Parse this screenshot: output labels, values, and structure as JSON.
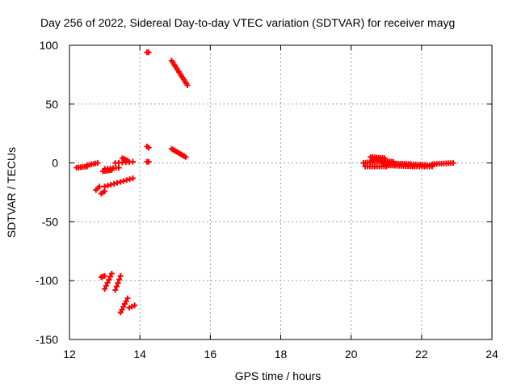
{
  "chart_data": {
    "type": "scatter",
    "title": "Day 256 of 2022, Sidereal Day-to-day VTEC variation (SDTVAR) for receiver mayg",
    "xlabel": "GPS time / hours",
    "ylabel": "SDTVAR / TECUs",
    "xlim": [
      12,
      24
    ],
    "ylim": [
      -150,
      100
    ],
    "xticks": [
      "12",
      "14",
      "16",
      "18",
      "20",
      "22",
      "24"
    ],
    "yticks": [
      "100",
      "50",
      "0",
      "-50",
      "-100",
      "-150"
    ],
    "grid": true,
    "marker": "+",
    "color": "#ff0000",
    "segments": [
      {
        "x0": 12.2,
        "y0": -4,
        "x1": 12.5,
        "y1": -3,
        "n": 6
      },
      {
        "x0": 12.5,
        "y0": -2,
        "x1": 12.8,
        "y1": 0,
        "n": 6
      },
      {
        "x0": 12.75,
        "y0": -23,
        "x1": 12.85,
        "y1": -20,
        "n": 3
      },
      {
        "x0": 12.9,
        "y0": -26,
        "x1": 13.0,
        "y1": -24,
        "n": 3
      },
      {
        "x0": 12.95,
        "y0": -7,
        "x1": 13.2,
        "y1": -6,
        "n": 6
      },
      {
        "x0": 13.0,
        "y0": -5,
        "x1": 13.4,
        "y1": -4,
        "n": 6
      },
      {
        "x0": 13.0,
        "y0": -20,
        "x1": 13.8,
        "y1": -13,
        "n": 10
      },
      {
        "x0": 13.5,
        "y0": 4,
        "x1": 13.65,
        "y1": 2,
        "n": 4
      },
      {
        "x0": 13.3,
        "y0": 0,
        "x1": 13.8,
        "y1": 1,
        "n": 6
      },
      {
        "x0": 12.9,
        "y0": -97,
        "x1": 13.0,
        "y1": -96,
        "n": 3
      },
      {
        "x0": 13.0,
        "y0": -107,
        "x1": 13.2,
        "y1": -94,
        "n": 6
      },
      {
        "x0": 13.3,
        "y0": -108,
        "x1": 13.45,
        "y1": -96,
        "n": 5
      },
      {
        "x0": 13.45,
        "y0": -127,
        "x1": 13.65,
        "y1": -115,
        "n": 6
      },
      {
        "x0": 13.7,
        "y0": -123,
        "x1": 13.85,
        "y1": -121,
        "n": 3
      },
      {
        "x0": 14.2,
        "y0": 94,
        "x1": 14.25,
        "y1": 94,
        "n": 2
      },
      {
        "x0": 14.2,
        "y0": 14,
        "x1": 14.25,
        "y1": 13,
        "n": 2
      },
      {
        "x0": 14.2,
        "y0": 1,
        "x1": 14.25,
        "y1": 1,
        "n": 2
      },
      {
        "x0": 14.9,
        "y0": 87,
        "x1": 15.35,
        "y1": 66,
        "n": 14
      },
      {
        "x0": 14.9,
        "y0": 12,
        "x1": 15.3,
        "y1": 5,
        "n": 10
      },
      {
        "x0": 20.35,
        "y0": 0,
        "x1": 20.6,
        "y1": 1,
        "n": 5
      },
      {
        "x0": 20.55,
        "y0": 5,
        "x1": 20.95,
        "y1": 4,
        "n": 8
      },
      {
        "x0": 20.6,
        "y0": 2,
        "x1": 21.2,
        "y1": 1,
        "n": 12
      },
      {
        "x0": 20.4,
        "y0": -3,
        "x1": 21.0,
        "y1": -3,
        "n": 10
      },
      {
        "x0": 20.9,
        "y0": 0,
        "x1": 21.7,
        "y1": -1,
        "n": 14
      },
      {
        "x0": 21.0,
        "y0": -2,
        "x1": 21.8,
        "y1": -3,
        "n": 14
      },
      {
        "x0": 21.7,
        "y0": -1,
        "x1": 22.3,
        "y1": -2,
        "n": 10
      },
      {
        "x0": 21.8,
        "y0": -3,
        "x1": 22.3,
        "y1": -3,
        "n": 8
      },
      {
        "x0": 22.3,
        "y0": -1,
        "x1": 22.9,
        "y1": 0,
        "n": 10
      }
    ]
  }
}
